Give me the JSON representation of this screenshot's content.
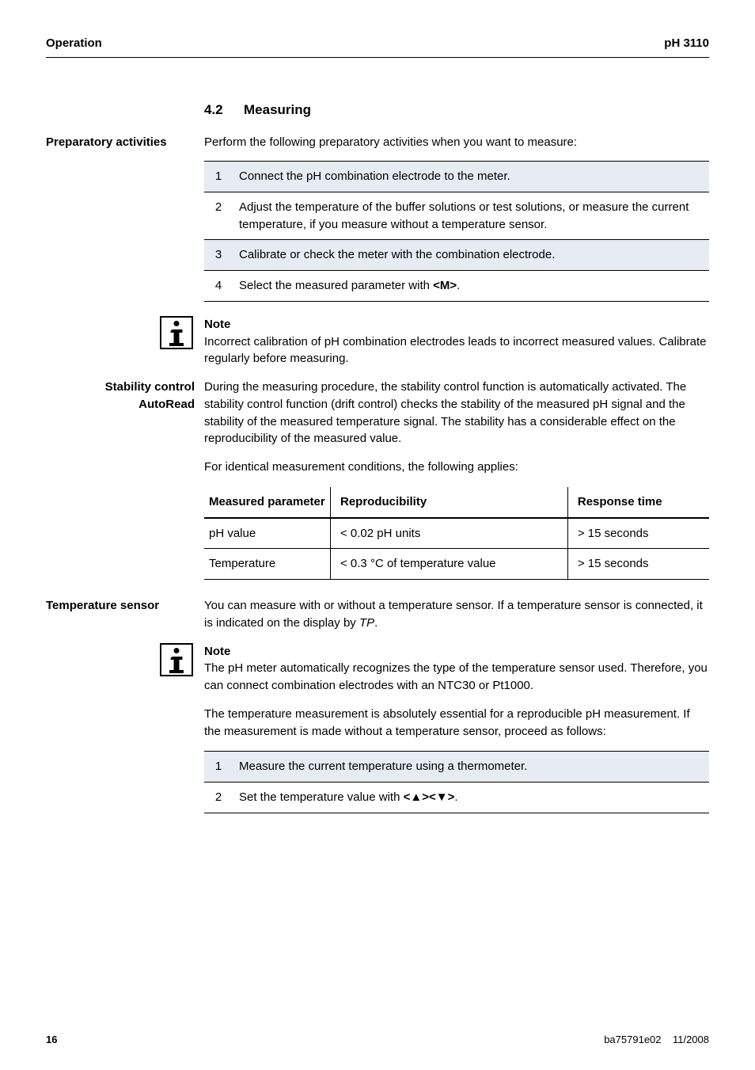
{
  "header": {
    "left": "Operation",
    "right": "pH 3110"
  },
  "section": {
    "number": "4.2",
    "title": "Measuring"
  },
  "prep": {
    "label": "Preparatory activities",
    "intro": "Perform the following preparatory activities when you want to measure:",
    "steps": [
      "Connect the pH combination electrode to the meter.",
      "Adjust the temperature of the buffer solutions or test solutions, or measure the current temperature, if you measure without a temperature sensor.",
      "Calibrate or check the meter with the combination electrode.",
      "Select the measured parameter with <M>."
    ]
  },
  "note1": {
    "title": "Note",
    "body": "Incorrect calibration of pH combination electrodes leads to incorrect measured values. Calibrate regularly before measuring."
  },
  "stability": {
    "label1": "Stability control",
    "label2": "AutoRead",
    "p1": "During the measuring procedure, the stability control function is automatically activated. The stability control function (drift control) checks the stability of the measured pH signal and the stability of the measured temperature signal. The stability has a considerable effect on the reproducibility of the measured value.",
    "p2": "For identical measurement conditions, the following applies:",
    "table": {
      "headers": [
        "Measured parameter",
        "Reproducibility",
        "Response time"
      ],
      "rows": [
        [
          "pH value",
          "< 0.02 pH units",
          "> 15 seconds"
        ],
        [
          "Temperature",
          "< 0.3 °C of temperature value",
          "> 15 seconds"
        ]
      ]
    }
  },
  "temp": {
    "label": "Temperature sensor",
    "p1a": "You can measure with or without a temperature sensor. If a temperature sensor is connected, it is indicated on the display by ",
    "p1b": "TP",
    "p1c": "."
  },
  "note2": {
    "title": "Note",
    "body": "The pH meter automatically recognizes the type of the temperature sensor used. Therefore, you can connect combination electrodes with an NTC30 or Pt1000."
  },
  "temp_p2": "The temperature measurement is absolutely essential for a reproducible pH measurement. If the measurement is made without a temperature sensor, proceed as follows:",
  "temp_steps": [
    "Measure the current temperature using a thermometer.",
    "Set the temperature value with <▲><▼>."
  ],
  "footer": {
    "page": "16",
    "doc": "ba75791e02",
    "date": "11/2008"
  },
  "colors": {
    "highlight_bg": "#e6ecf2",
    "page_bg": "#ffffff",
    "text": "#000000",
    "rule": "#000000"
  },
  "typography": {
    "body_size_pt": 11,
    "heading_size_pt": 13,
    "font_family": "Arial"
  }
}
